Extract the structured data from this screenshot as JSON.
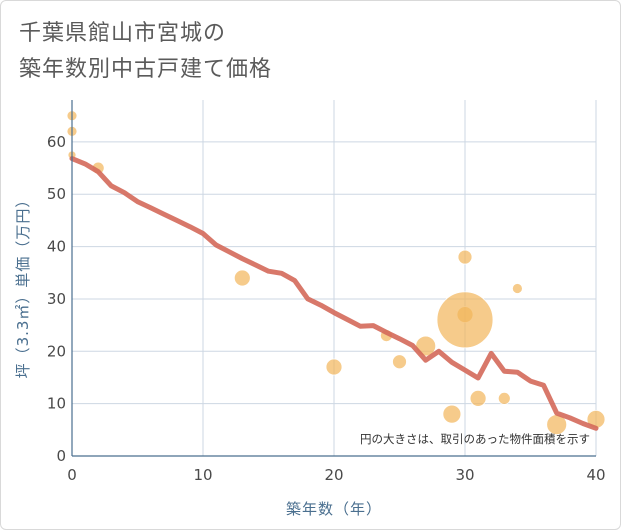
{
  "title_line1": "千葉県館山市宮城の",
  "title_line2": "築年数別中古戸建て価格",
  "chart_data": {
    "type": "scatter",
    "title": "千葉県館山市宮城の築年数別中古戸建て価格",
    "xlabel": "築年数（年）",
    "ylabel": "坪（3.3㎡）単価（万円）",
    "xlim": [
      0,
      40
    ],
    "ylim": [
      0,
      68
    ],
    "xticks": [
      0,
      10,
      20,
      30,
      40
    ],
    "yticks": [
      0,
      10,
      20,
      30,
      40,
      50,
      60
    ],
    "grid": true,
    "note": "円の大きさは、取引のあった物件面積を示す",
    "colors": {
      "bubble": "#f2b55a",
      "trend": "#d4695a",
      "grid": "#cdd7e3",
      "axis": "#4a6f8f"
    },
    "bubbles": [
      {
        "x": 0,
        "y": 65,
        "r": 5
      },
      {
        "x": 0,
        "y": 62,
        "r": 5
      },
      {
        "x": 0,
        "y": 57.5,
        "r": 4
      },
      {
        "x": 2,
        "y": 55,
        "r": 6
      },
      {
        "x": 13,
        "y": 34,
        "r": 8
      },
      {
        "x": 20,
        "y": 17,
        "r": 8
      },
      {
        "x": 24,
        "y": 23,
        "r": 6
      },
      {
        "x": 25,
        "y": 18,
        "r": 7
      },
      {
        "x": 27,
        "y": 21,
        "r": 10
      },
      {
        "x": 29,
        "y": 8,
        "r": 9
      },
      {
        "x": 30,
        "y": 38,
        "r": 7
      },
      {
        "x": 30,
        "y": 27,
        "r": 8
      },
      {
        "x": 30,
        "y": 26,
        "r": 28
      },
      {
        "x": 31,
        "y": 11,
        "r": 8
      },
      {
        "x": 33,
        "y": 11,
        "r": 6
      },
      {
        "x": 34,
        "y": 32,
        "r": 5
      },
      {
        "x": 37,
        "y": 6,
        "r": 10
      },
      {
        "x": 40,
        "y": 7,
        "r": 9
      }
    ],
    "trend": {
      "x": [
        0,
        1,
        2,
        3,
        4,
        5,
        6,
        7,
        8,
        9,
        10,
        11,
        12,
        13,
        14,
        15,
        16,
        17,
        18,
        19,
        20,
        21,
        22,
        23,
        24,
        25,
        26,
        27,
        28,
        29,
        30,
        31,
        32,
        33,
        34,
        35,
        36,
        37,
        38,
        39,
        40
      ],
      "y": [
        56.8,
        55.8,
        54.3,
        51.6,
        50.3,
        48.6,
        47.4,
        46.2,
        45.0,
        43.8,
        42.5,
        40.3,
        39.0,
        37.7,
        36.5,
        35.3,
        34.9,
        33.5,
        30.0,
        28.8,
        27.4,
        26.1,
        24.8,
        24.9,
        23.6,
        22.4,
        21.1,
        18.3,
        20.0,
        17.9,
        16.4,
        14.9,
        19.6,
        16.2,
        16.0,
        14.3,
        13.5,
        8.2,
        7.3,
        6.2,
        5.3
      ]
    }
  }
}
